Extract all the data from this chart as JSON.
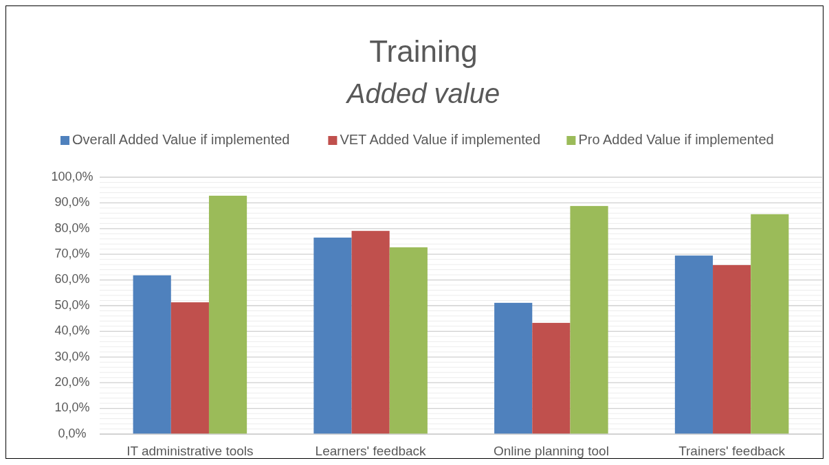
{
  "chart_data": {
    "type": "bar",
    "title": "Training",
    "subtitle": "Added value",
    "categories": [
      "IT administrative tools",
      "Learners' feedback",
      "Online planning tool",
      "Trainers' feedback"
    ],
    "series": [
      {
        "name": "Overall Added Value if implemented",
        "color": "#4f81bd",
        "values": [
          61.8,
          76.5,
          51.1,
          69.5
        ]
      },
      {
        "name": "VET Added Value if implemented",
        "color": "#c0504d",
        "values": [
          51.3,
          79.1,
          43.3,
          65.8
        ]
      },
      {
        "name": "Pro Added Value if implemented",
        "color": "#9bbb59",
        "values": [
          92.8,
          72.7,
          88.8,
          85.6
        ]
      }
    ],
    "ylim": [
      0,
      100
    ],
    "yticks": [
      {
        "value": 0,
        "label": "0,0%"
      },
      {
        "value": 10,
        "label": "10,0%"
      },
      {
        "value": 20,
        "label": "20,0%"
      },
      {
        "value": 30,
        "label": "30,0%"
      },
      {
        "value": 40,
        "label": "40,0%"
      },
      {
        "value": 50,
        "label": "50,0%"
      },
      {
        "value": 60,
        "label": "60,0%"
      },
      {
        "value": 70,
        "label": "70,0%"
      },
      {
        "value": 80,
        "label": "80,0%"
      },
      {
        "value": 90,
        "label": "90,0%"
      },
      {
        "value": 100,
        "label": "100,0%"
      }
    ],
    "grid": "y",
    "legend": "top"
  }
}
